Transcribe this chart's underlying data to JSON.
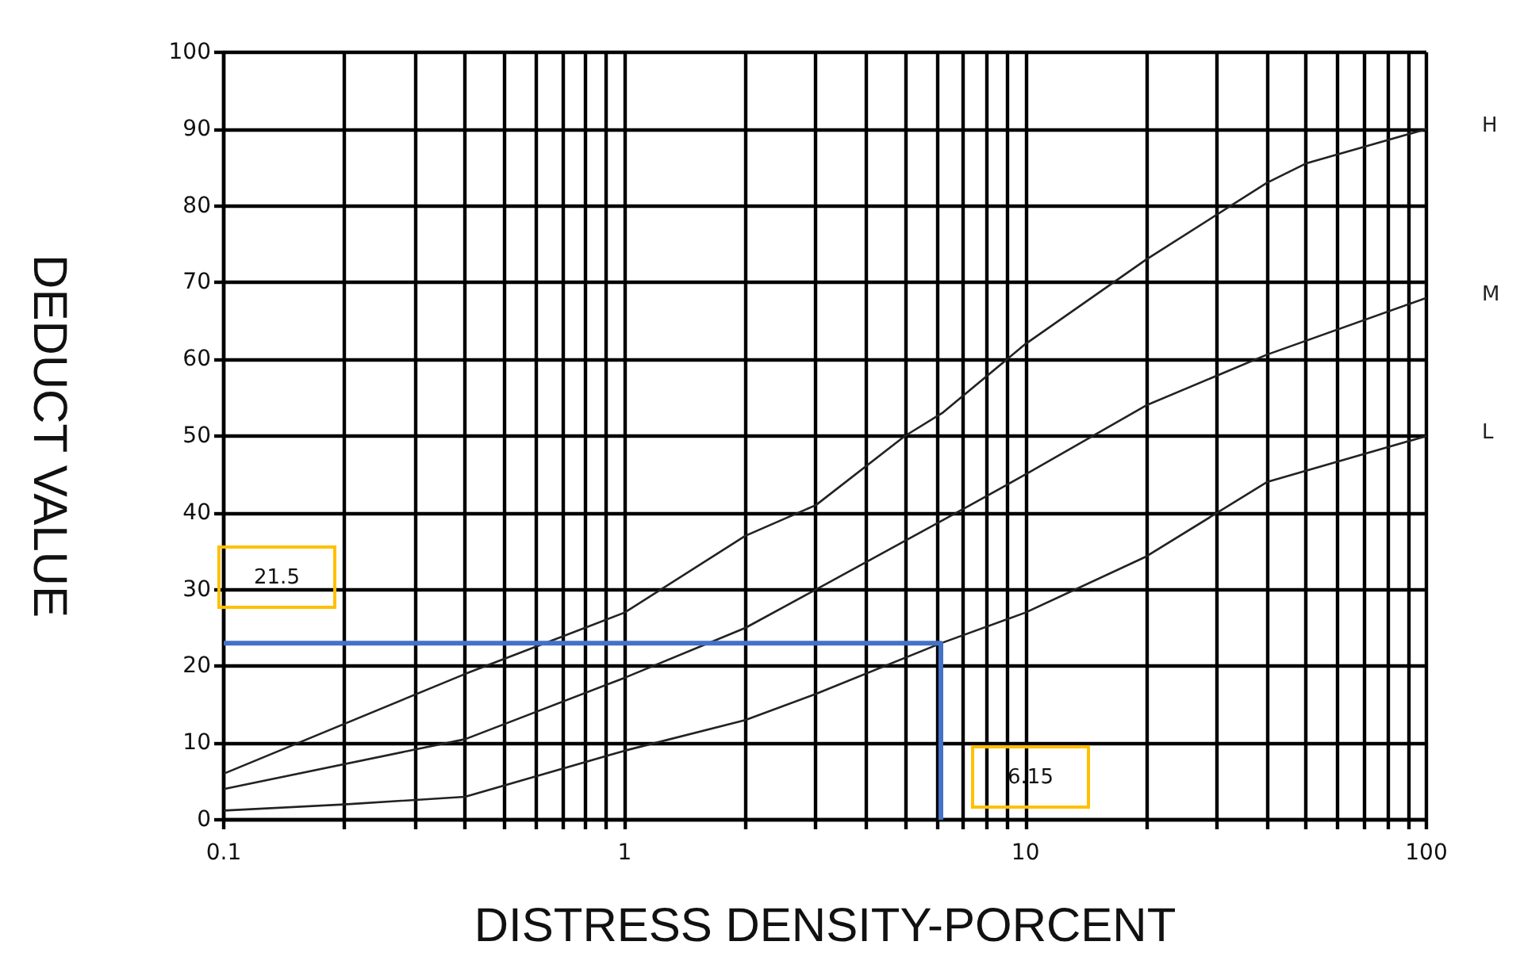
{
  "chart_data": {
    "type": "line",
    "xlabel": "DISTRESS DENSITY-PORCENT",
    "ylabel": "DEDUCT VALUE",
    "log": "x",
    "grid": true,
    "legend": false,
    "marker": "none",
    "line_style": "solid",
    "xlim": [
      0.1,
      100
    ],
    "ylim": [
      0,
      100
    ],
    "xticks": [
      0.1,
      {
        "value": 0.2,
        "label": null
      },
      {
        "value": 0.3,
        "label": null
      },
      {
        "value": 0.4,
        "label": null
      },
      {
        "value": 0.5,
        "label": null
      },
      {
        "value": 0.6,
        "label": null
      },
      {
        "value": 0.7,
        "label": null
      },
      {
        "value": 0.8,
        "label": null
      },
      {
        "value": 0.9,
        "label": null
      },
      1,
      {
        "value": 2,
        "label": null
      },
      {
        "value": 3,
        "label": null
      },
      {
        "value": 4,
        "label": null
      },
      {
        "value": 5,
        "label": null
      },
      {
        "value": 6,
        "label": null
      },
      {
        "value": 7,
        "label": null
      },
      {
        "value": 8,
        "label": null
      },
      {
        "value": 9,
        "label": null
      },
      10,
      {
        "value": 20,
        "label": null
      },
      {
        "value": 30,
        "label": null
      },
      {
        "value": 40,
        "label": null
      },
      {
        "value": 50,
        "label": null
      },
      {
        "value": 60,
        "label": null
      },
      {
        "value": 70,
        "label": null
      },
      {
        "value": 80,
        "label": null
      },
      {
        "value": 90,
        "label": null
      },
      100
    ],
    "yticks": [
      0,
      10,
      20,
      30,
      40,
      50,
      60,
      70,
      80,
      90,
      100
    ],
    "series": [
      {
        "name": "H",
        "color": "#222222",
        "x": [
          0.1,
          0.4,
          1,
          2,
          3,
          5,
          6.2,
          10,
          20,
          40,
          50,
          100
        ],
        "values": [
          6,
          19,
          27,
          37,
          41,
          50,
          53,
          62,
          73,
          83,
          85.5,
          90
        ]
      },
      {
        "name": "M",
        "color": "#222222",
        "x": [
          0.1,
          0.4,
          1,
          2,
          3,
          7,
          10,
          20,
          40,
          100
        ],
        "values": [
          4,
          10.5,
          18.5,
          25,
          30,
          40.5,
          45,
          54,
          60.6,
          68
        ]
      },
      {
        "name": "L",
        "color": "#222222",
        "x": [
          0.1,
          0.2,
          0.4,
          1,
          2,
          3,
          6.15,
          10,
          20,
          40,
          100
        ],
        "values": [
          1.2,
          2,
          3,
          9,
          13,
          16.4,
          23,
          27,
          34.3,
          44,
          50
        ]
      },
      {
        "color": "#4472c4",
        "x": [
          0.1,
          6.15,
          6.15
        ],
        "values": [
          23,
          23,
          0
        ]
      }
    ],
    "annotations": [
      "21.5",
      "6.15"
    ]
  }
}
